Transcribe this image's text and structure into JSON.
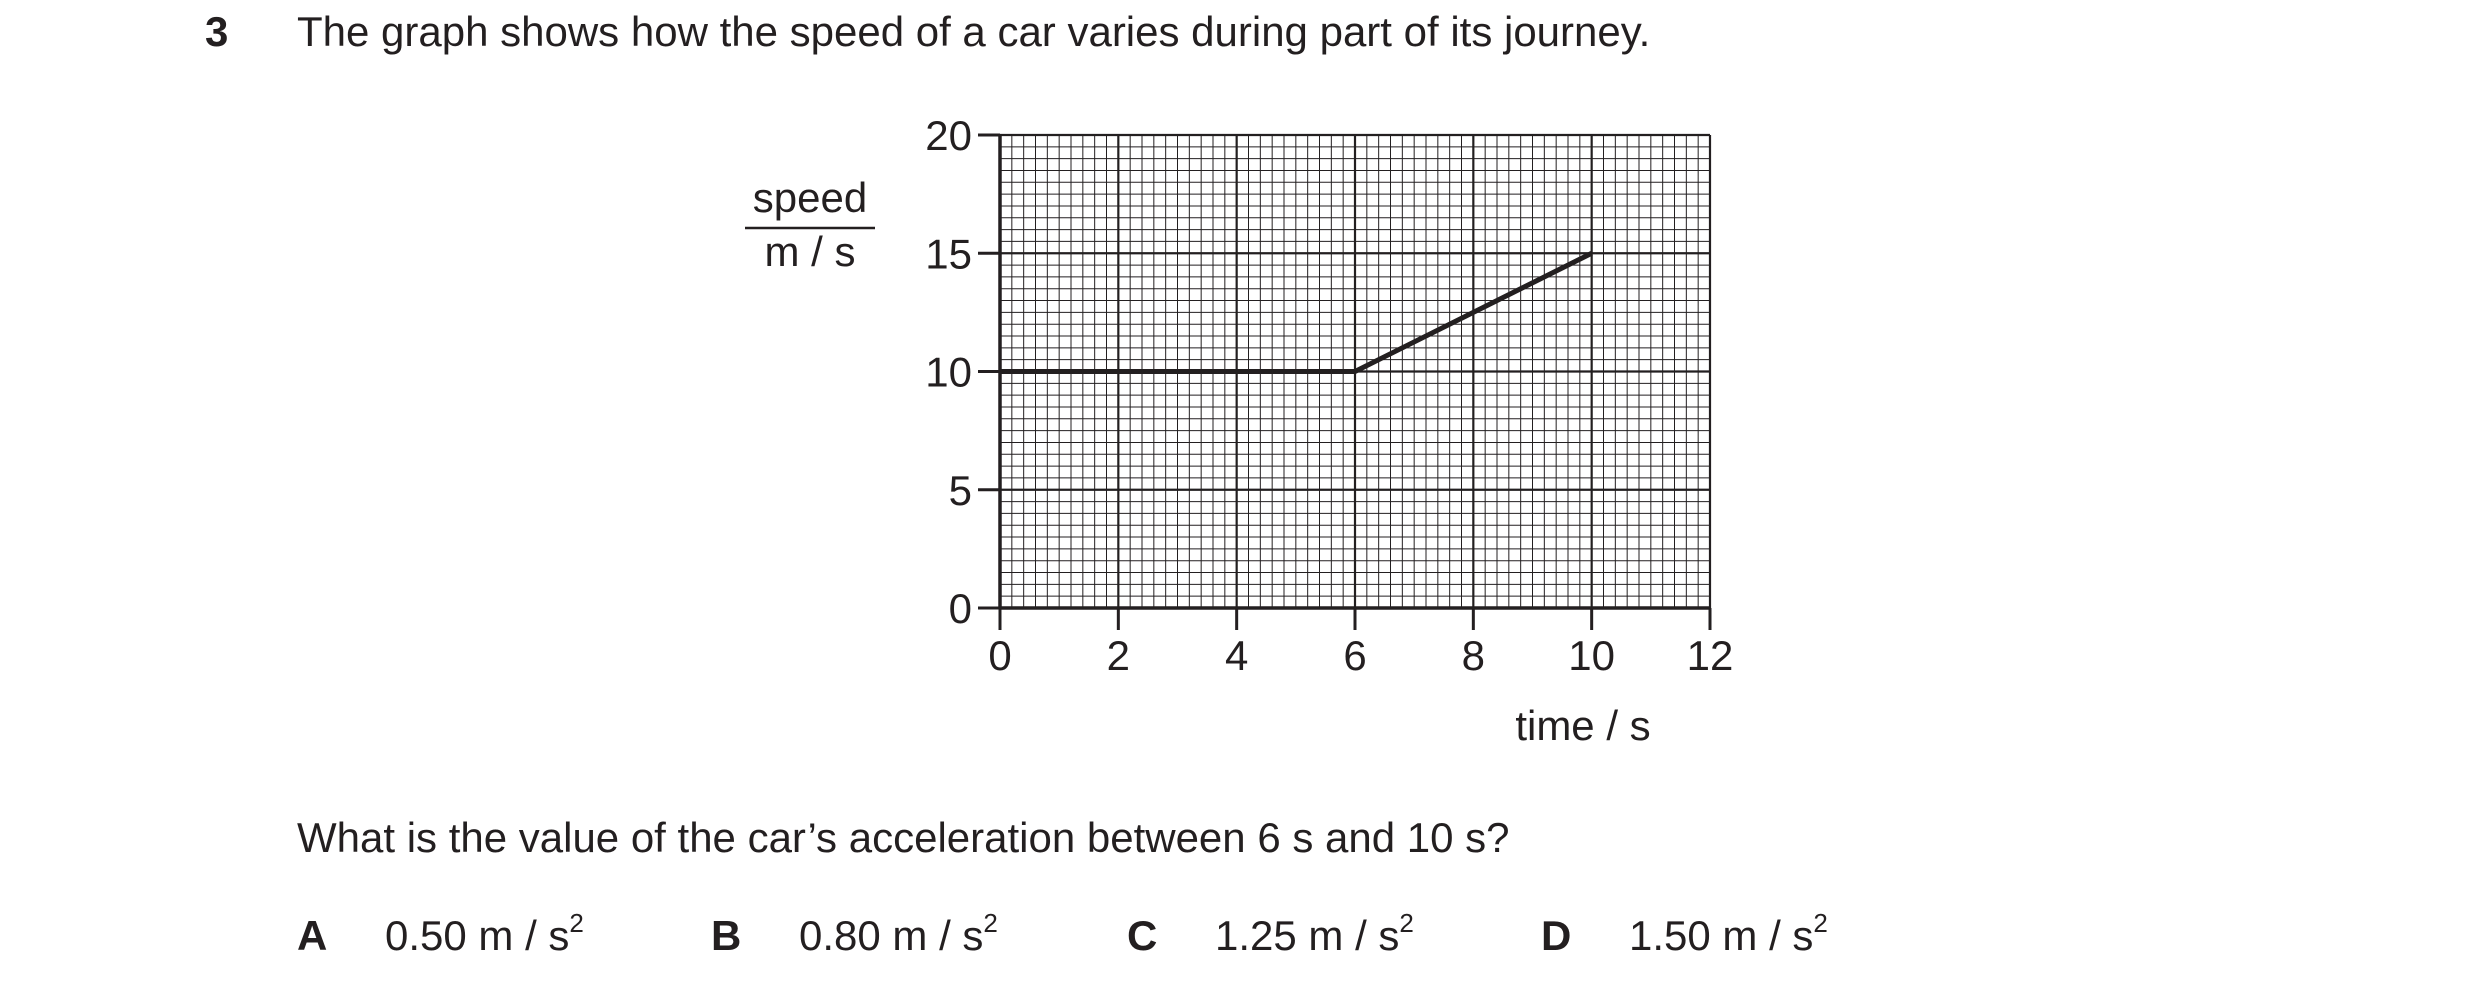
{
  "question": {
    "number": "3",
    "stem": "The graph shows how the speed of a car varies during part of its journey.",
    "prompt": "What is the value of the car’s acceleration between 6 s and 10 s?",
    "options": [
      {
        "letter": "A",
        "value": "0.50 m / s",
        "power": "2"
      },
      {
        "letter": "B",
        "value": "0.80 m / s",
        "power": "2"
      },
      {
        "letter": "C",
        "value": "1.25 m / s",
        "power": "2"
      },
      {
        "letter": "D",
        "value": "1.50 m / s",
        "power": "2"
      }
    ]
  },
  "chart_data": {
    "type": "line",
    "title": "",
    "xlabel": "time / s",
    "ylabel_top": "speed",
    "ylabel_bottom": "m / s",
    "xlim": [
      0,
      12
    ],
    "ylim": [
      0,
      20
    ],
    "x_ticks": [
      0,
      2,
      4,
      6,
      8,
      10,
      12
    ],
    "y_ticks": [
      0,
      5,
      10,
      15,
      20
    ],
    "grid": true,
    "series": [
      {
        "points": [
          [
            0,
            10
          ],
          [
            6,
            10
          ],
          [
            10,
            15
          ]
        ]
      }
    ]
  }
}
